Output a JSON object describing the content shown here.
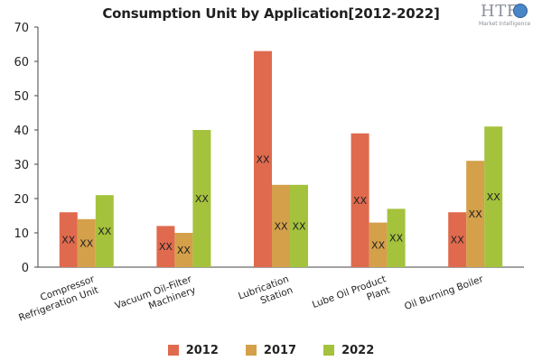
{
  "chart_data": {
    "type": "bar",
    "title": "Consumption Unit by  Application[2012-2022]",
    "xlabel": "",
    "ylabel": "",
    "ylim": [
      0,
      70
    ],
    "yticks": [
      0,
      10,
      20,
      30,
      40,
      50,
      60,
      70
    ],
    "grid": false,
    "legend_position": "bottom",
    "categories": [
      [
        "Compressor",
        "Refrigeration Unit"
      ],
      [
        "Vacuum Oil-Filter",
        "Machinery"
      ],
      [
        "Lubrication",
        "Station"
      ],
      [
        "Lube Oil Product",
        "Plant"
      ],
      [
        "Oil Burning Boiler"
      ]
    ],
    "series": [
      {
        "name": "2012",
        "color": "#e06a4e",
        "values": [
          16,
          12,
          63,
          39,
          16
        ],
        "labels": [
          "XX",
          "XX",
          "XX",
          "XX",
          "XX"
        ]
      },
      {
        "name": "2017",
        "color": "#d4a04a",
        "values": [
          14,
          10,
          24,
          13,
          31
        ],
        "labels": [
          "XX",
          "XX",
          "XX",
          "XX",
          "XX"
        ]
      },
      {
        "name": "2022",
        "color": "#a4c23c",
        "values": [
          21,
          40,
          24,
          17,
          41
        ],
        "labels": [
          "XX",
          "XX",
          "XX",
          "XX",
          "XX"
        ]
      }
    ]
  },
  "logo": {
    "brand": "HTF",
    "tagline": "Market Intelligence"
  }
}
